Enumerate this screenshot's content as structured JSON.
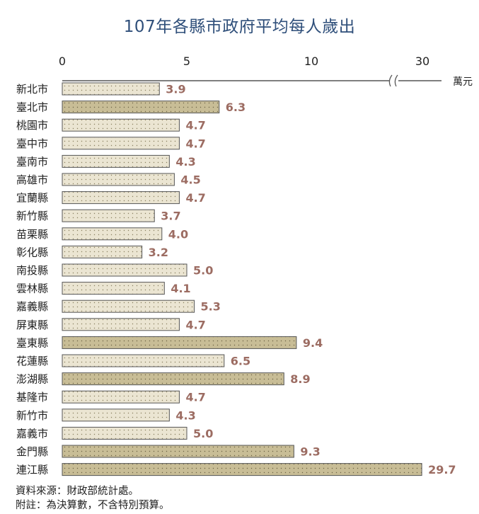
{
  "title": "107年各縣市政府平均每人歲出",
  "footnotes": {
    "source": "資料來源：財政部統計處。",
    "note": "附註：為決算數，不含特別預算。"
  },
  "colors": {
    "title": "#2f4f7a",
    "bar_light": "#ebe5d2",
    "bar_dark": "#c8bd96",
    "bar_border": "#555555",
    "value_label": "#9c6c62",
    "axis": "#555555"
  },
  "chart_data": {
    "type": "bar",
    "orientation": "horizontal",
    "unit": "萬元",
    "axis_ticks": [
      "0",
      "5",
      "10",
      "30"
    ],
    "axis_break": true,
    "xlim": [
      0,
      30
    ],
    "categories": [
      "新北市",
      "臺北市",
      "桃園市",
      "臺中市",
      "臺南市",
      "高雄市",
      "宜蘭縣",
      "新竹縣",
      "苗栗縣",
      "彰化縣",
      "南投縣",
      "雲林縣",
      "嘉義縣",
      "屏東縣",
      "臺東縣",
      "花蓮縣",
      "澎湖縣",
      "基隆市",
      "新竹市",
      "嘉義市",
      "金門縣",
      "連江縣"
    ],
    "values": [
      3.9,
      6.3,
      4.7,
      4.7,
      4.3,
      4.5,
      4.7,
      3.7,
      4.0,
      3.2,
      5.0,
      4.1,
      5.3,
      4.7,
      9.4,
      6.5,
      8.9,
      4.7,
      4.3,
      5.0,
      9.3,
      29.7
    ],
    "value_labels": [
      "3.9",
      "6.3",
      "4.7",
      "4.7",
      "4.3",
      "4.5",
      "4.7",
      "3.7",
      "4.0",
      "3.2",
      "5.0",
      "4.1",
      "5.3",
      "4.7",
      "9.4",
      "6.5",
      "8.9",
      "4.7",
      "4.3",
      "5.0",
      "9.3",
      "29.7"
    ],
    "highlight": [
      false,
      true,
      false,
      false,
      false,
      false,
      false,
      false,
      false,
      false,
      false,
      false,
      false,
      false,
      true,
      false,
      true,
      false,
      false,
      false,
      true,
      true
    ],
    "grid": false,
    "legend": "none"
  }
}
